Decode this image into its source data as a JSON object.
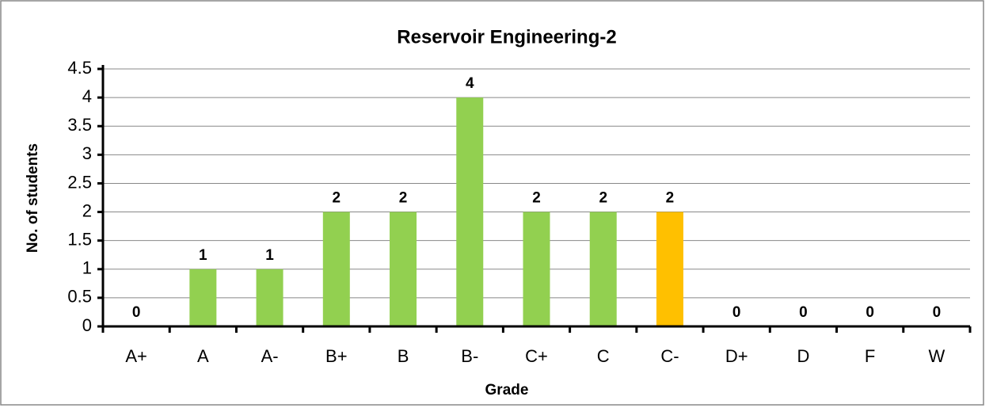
{
  "chart_data": {
    "type": "bar",
    "title": "Reservoir Engineering-2",
    "x_label": "Grade",
    "y_label": "No. of students",
    "categories": [
      "A+",
      "A",
      "A-",
      "B+",
      "B",
      "B-",
      "C+",
      "C",
      "C-",
      "D+",
      "D",
      "F",
      "W"
    ],
    "values": [
      0,
      1,
      1,
      2,
      2,
      4,
      2,
      2,
      2,
      0,
      0,
      0,
      0
    ],
    "colors": [
      "#92d050",
      "#92d050",
      "#92d050",
      "#92d050",
      "#92d050",
      "#92d050",
      "#92d050",
      "#92d050",
      "#ffc000",
      "#92d050",
      "#92d050",
      "#92d050",
      "#92d050"
    ],
    "ylim": [
      0,
      4.5
    ],
    "yticks": [
      0,
      0.5,
      1,
      1.5,
      2,
      2.5,
      3,
      3.5,
      4,
      4.5
    ],
    "grid": true
  }
}
